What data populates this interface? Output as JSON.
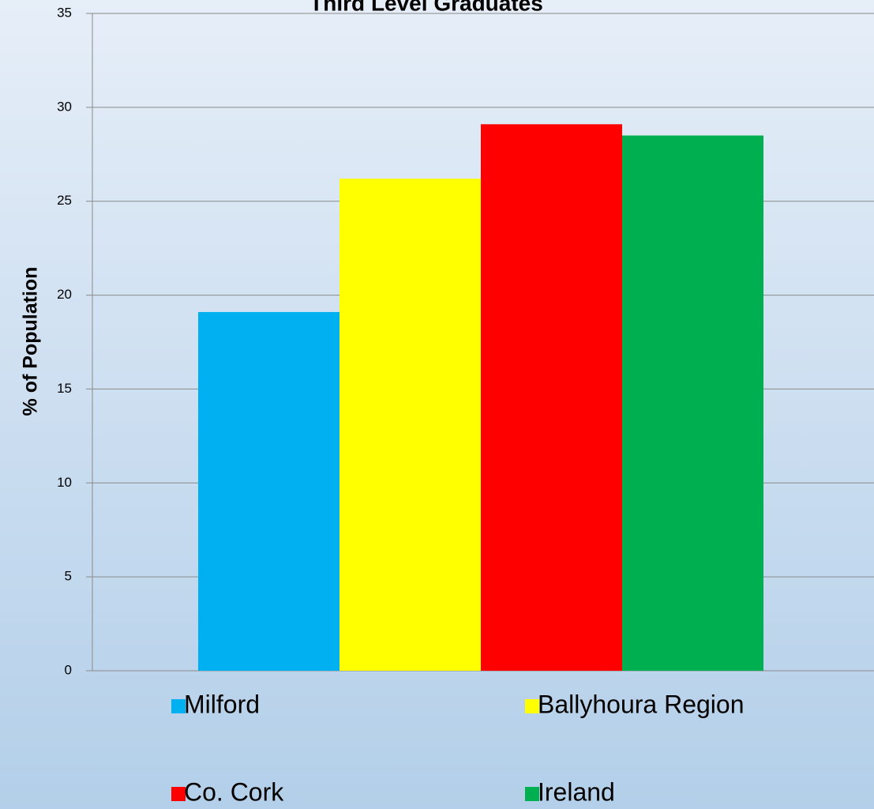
{
  "chart_data": {
    "type": "bar",
    "title": "Third Level Graduates",
    "y_label": "% of Population",
    "categories": [
      null
    ],
    "series": [
      {
        "name": "Milford",
        "color": "#00b0f0",
        "values": [
          19.1
        ]
      },
      {
        "name": "Ballyhoura Region",
        "color": "#ffff00",
        "values": [
          26.2
        ]
      },
      {
        "name": "Co. Cork",
        "color": "#ff0000",
        "values": [
          29.1
        ]
      },
      {
        "name": "Ireland",
        "color": "#00b050",
        "values": [
          28.5
        ]
      }
    ],
    "ylim": [
      0,
      35
    ],
    "yticks": [
      0,
      5,
      10,
      15,
      20,
      25,
      30,
      35
    ],
    "grid": true,
    "legend": "bottom"
  }
}
